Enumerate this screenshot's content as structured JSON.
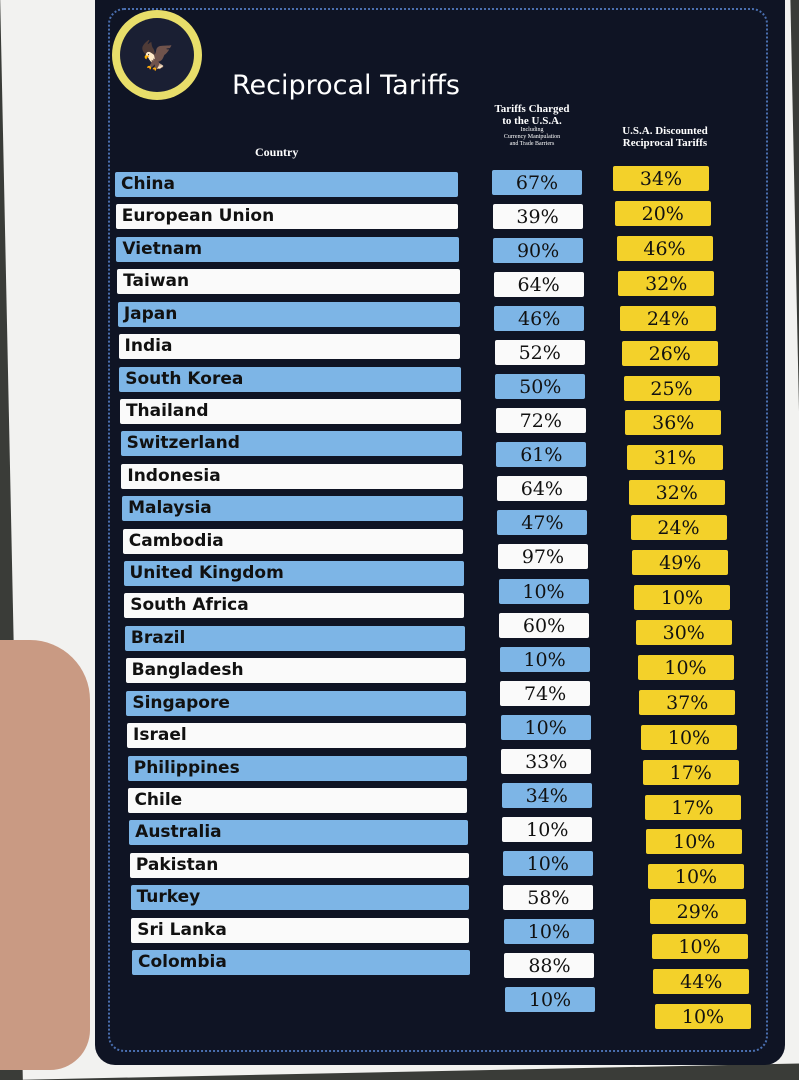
{
  "title": "Reciprocal Tariffs",
  "seal_text": "SEAL OF THE PRESIDENT OF THE UNITED STATES",
  "headers": {
    "country": "Country",
    "charged_line1": "Tariffs Charged",
    "charged_line2": "to the U.S.A.",
    "charged_sub1": "Including",
    "charged_sub2": "Currency Manipulation",
    "charged_sub3": "and Trade Barriers",
    "discounted_line1": "U.S.A. Discounted",
    "discounted_line2": "Reciprocal Tariffs"
  },
  "colors": {
    "blue_row": "#7db5e6",
    "white_row": "#fafafa",
    "yellow": "#f3d12a",
    "board": "#0f1424"
  },
  "rows": [
    {
      "country": "China",
      "charged": "67%",
      "discounted": "34%"
    },
    {
      "country": "European Union",
      "charged": "39%",
      "discounted": "20%"
    },
    {
      "country": "Vietnam",
      "charged": "90%",
      "discounted": "46%"
    },
    {
      "country": "Taiwan",
      "charged": "64%",
      "discounted": "32%"
    },
    {
      "country": "Japan",
      "charged": "46%",
      "discounted": "24%"
    },
    {
      "country": "India",
      "charged": "52%",
      "discounted": "26%"
    },
    {
      "country": "South Korea",
      "charged": "50%",
      "discounted": "25%"
    },
    {
      "country": "Thailand",
      "charged": "72%",
      "discounted": "36%"
    },
    {
      "country": "Switzerland",
      "charged": "61%",
      "discounted": "31%"
    },
    {
      "country": "Indonesia",
      "charged": "64%",
      "discounted": "32%"
    },
    {
      "country": "Malaysia",
      "charged": "47%",
      "discounted": "24%"
    },
    {
      "country": "Cambodia",
      "charged": "97%",
      "discounted": "49%"
    },
    {
      "country": "United Kingdom",
      "charged": "10%",
      "discounted": "10%"
    },
    {
      "country": "South Africa",
      "charged": "60%",
      "discounted": "30%"
    },
    {
      "country": "Brazil",
      "charged": "10%",
      "discounted": "10%"
    },
    {
      "country": "Bangladesh",
      "charged": "74%",
      "discounted": "37%"
    },
    {
      "country": "Singapore",
      "charged": "10%",
      "discounted": "10%"
    },
    {
      "country": "Israel",
      "charged": "33%",
      "discounted": "17%"
    },
    {
      "country": "Philippines",
      "charged": "34%",
      "discounted": "17%"
    },
    {
      "country": "Chile",
      "charged": "10%",
      "discounted": "10%"
    },
    {
      "country": "Australia",
      "charged": "10%",
      "discounted": "10%"
    },
    {
      "country": "Pakistan",
      "charged": "58%",
      "discounted": "29%"
    },
    {
      "country": "Turkey",
      "charged": "10%",
      "discounted": "10%"
    },
    {
      "country": "Sri Lanka",
      "charged": "88%",
      "discounted": "44%"
    },
    {
      "country": "Colombia",
      "charged": "10%",
      "discounted": "10%"
    }
  ]
}
